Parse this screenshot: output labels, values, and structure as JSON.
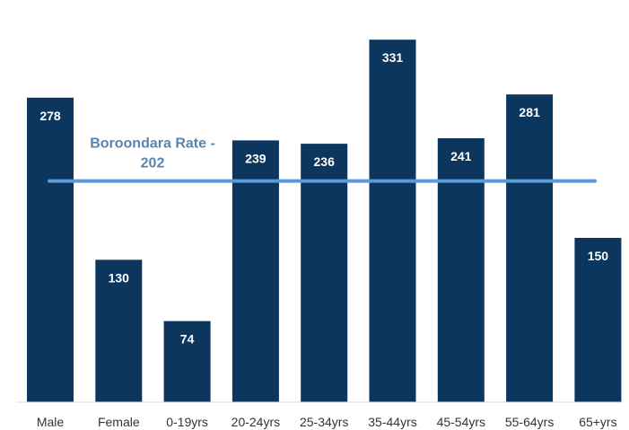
{
  "chart_data": {
    "type": "bar",
    "categories": [
      "Male",
      "Female",
      "0-19yrs",
      "20-24yrs",
      "25-34yrs",
      "35-44yrs",
      "45-54yrs",
      "55-64yrs",
      "65+yrs"
    ],
    "values": [
      278,
      130,
      74,
      239,
      236,
      331,
      241,
      281,
      150
    ],
    "value_labels": [
      "278",
      "130",
      "74",
      "239",
      "236",
      "331",
      "241",
      "281",
      "150"
    ],
    "title": "",
    "xlabel": "",
    "ylabel": "",
    "ylim": [
      0,
      340
    ],
    "grid": false,
    "legend": "none",
    "reference_line": {
      "value": 202,
      "label_line1": "Boroondara Rate -",
      "label_line2": "202"
    },
    "colors": {
      "bar": "#0c365d",
      "reference_line": "#5b9bd5",
      "reference_label": "#5a84aa"
    }
  }
}
